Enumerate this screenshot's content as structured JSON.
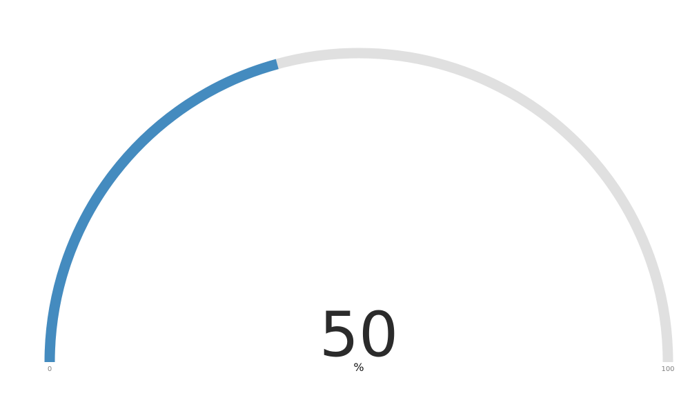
{
  "chart_data": {
    "type": "gauge",
    "value": 50,
    "display_value": "50",
    "unit": "%",
    "min": 0,
    "max": 100,
    "min_label": "0",
    "max_label": "100",
    "colors": {
      "value_arc": "#448bbf",
      "track_arc": "#e0e0e0"
    }
  }
}
